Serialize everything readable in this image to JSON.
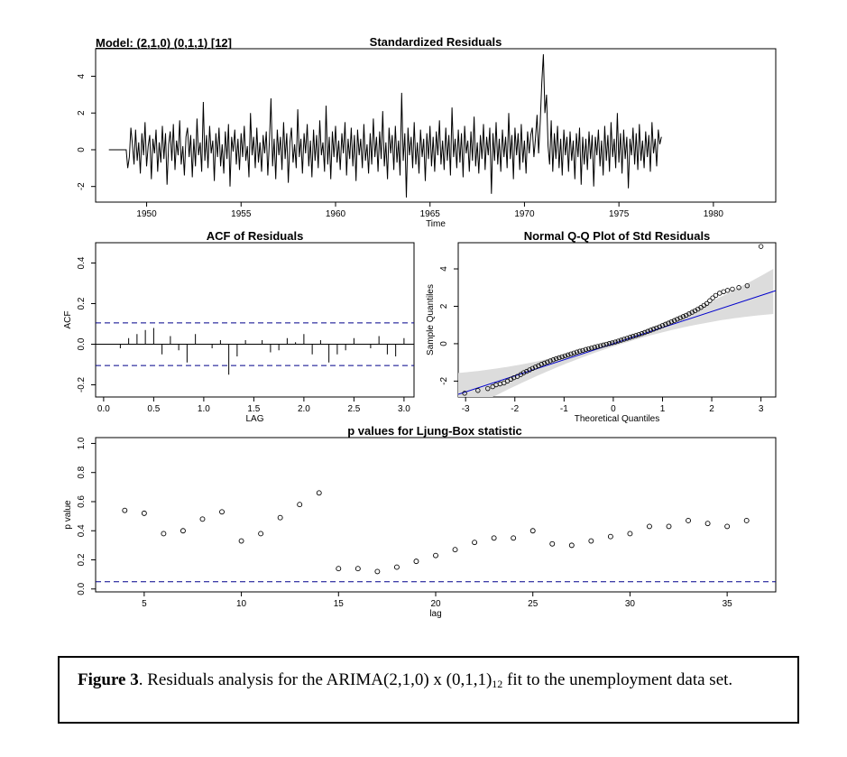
{
  "chart_data": [
    {
      "type": "line",
      "model_label": "Model: (2,1,0) (0,1,1) [12]",
      "title": "Standardized Residuals",
      "xlabel": "Time",
      "ylabel": "",
      "xlim": [
        1947.3,
        1983.3
      ],
      "ylim": [
        -2.85,
        5.5
      ],
      "xticks": [
        1950,
        1955,
        1960,
        1965,
        1970,
        1975,
        1980
      ],
      "yticks": [
        -2,
        0,
        2,
        4
      ],
      "x_start": 1948.0,
      "x_step": 0.08333,
      "y": [
        0,
        0,
        0,
        0,
        0,
        0,
        0,
        0,
        0,
        0,
        0,
        0,
        -1.0,
        -0.4,
        1.2,
        0.3,
        -0.8,
        1.1,
        -0.6,
        0.4,
        -1.3,
        0.9,
        -0.3,
        1.5,
        -0.9,
        0.2,
        0.8,
        -1.6,
        0.6,
        -0.2,
        1.1,
        -1.2,
        0.4,
        -0.7,
        1.3,
        -0.5,
        0.9,
        -1.9,
        0.3,
        1.0,
        -0.6,
        1.4,
        -1.1,
        0.5,
        -0.3,
        1.6,
        -0.8,
        0.2,
        -1.4,
        0.7,
        1.2,
        -0.4,
        0.8,
        -1.5,
        0.6,
        -0.9,
        1.7,
        -0.3,
        0.4,
        -1.2,
        2.6,
        -0.6,
        0.8,
        -1.0,
        1.3,
        -0.2,
        0.5,
        -1.7,
        0.9,
        -0.4,
        1.2,
        -0.9,
        0.3,
        -1.3,
        1.0,
        -0.5,
        1.4,
        -2.0,
        0.7,
        -0.1,
        1.1,
        -0.8,
        0.6,
        -1.1,
        0.9,
        -0.4,
        1.3,
        -0.6,
        0.2,
        -1.5,
        2.0,
        -0.3,
        0.7,
        -1.0,
        1.2,
        -0.7,
        0.4,
        -1.2,
        0.8,
        -0.2,
        1.0,
        -1.4,
        0.5,
        2.8,
        -0.9,
        0.6,
        -1.6,
        1.1,
        -0.3,
        0.7,
        -1.1,
        1.5,
        -0.5,
        0.9,
        -1.8,
        0.4,
        1.2,
        -0.7,
        0.3,
        -1.0,
        2.2,
        -0.4,
        0.6,
        -1.3,
        0.9,
        -0.2,
        1.4,
        -0.9,
        0.5,
        -1.5,
        1.1,
        -0.6,
        0.8,
        -1.0,
        1.6,
        -0.3,
        0.4,
        -1.2,
        2.4,
        -0.8,
        0.7,
        -1.6,
        1.0,
        -0.4,
        1.3,
        -0.7,
        0.5,
        -1.1,
        0.9,
        -0.2,
        1.5,
        -1.4,
        0.6,
        -0.5,
        1.2,
        -0.9,
        0.8,
        -1.7,
        1.1,
        -0.3,
        0.6,
        -1.0,
        1.4,
        -0.6,
        0.3,
        -1.3,
        0.9,
        -0.8,
        1.7,
        -0.4,
        0.7,
        -1.2,
        1.0,
        -0.5,
        2.1,
        -0.9,
        0.4,
        -1.6,
        1.2,
        -0.2,
        0.8,
        -1.1,
        1.3,
        -0.7,
        0.5,
        -1.4,
        3.1,
        -0.6,
        0.9,
        -2.6,
        1.2,
        -0.3,
        0.7,
        -1.0,
        1.5,
        -0.8,
        0.4,
        -1.3,
        1.1,
        -0.4,
        0.6,
        -1.7,
        0.9,
        -0.5,
        1.3,
        -0.9,
        0.7,
        -1.2,
        1.0,
        -0.3,
        1.6,
        -0.8,
        0.5,
        -1.1,
        1.2,
        -0.6,
        0.8,
        -1.4,
        2.3,
        -0.4,
        0.6,
        -1.0,
        1.1,
        -0.7,
        0.9,
        -1.5,
        1.3,
        -0.2,
        0.5,
        -1.2,
        1.0,
        -0.6,
        1.8,
        -0.9,
        0.4,
        -1.3,
        0.8,
        -0.5,
        1.4,
        -1.1,
        0.7,
        -0.3,
        1.2,
        -2.4,
        0.9,
        -0.6,
        1.5,
        -0.8,
        0.6,
        -1.2,
        1.1,
        -0.4,
        0.7,
        -1.0,
        2.0,
        -0.5,
        0.8,
        -1.6,
        1.2,
        -0.3,
        0.9,
        -1.1,
        1.4,
        -0.7,
        0.5,
        -1.3,
        1.0,
        -0.2,
        0.8,
        1.2,
        -0.4,
        0.6,
        1.9,
        -0.2,
        1.5,
        3.6,
        5.2,
        2.0,
        3.0,
        0.2,
        -0.8,
        1.6,
        -1.2,
        0.9,
        -0.5,
        1.3,
        -1.0,
        0.6,
        -1.4,
        1.1,
        -0.3,
        0.7,
        -1.2,
        1.0,
        -0.6,
        0.5,
        -1.6,
        0.9,
        -0.4,
        1.2,
        -1.9,
        0.7,
        -0.8,
        0.6,
        -1.1,
        1.0,
        -0.5,
        0.8,
        -2.0,
        0.7,
        -0.3,
        1.1,
        -0.9,
        0.5,
        -1.4,
        1.3,
        -0.6,
        0.8,
        -1.2,
        1.5,
        -0.4,
        0.6,
        -1.0,
        2.0,
        -0.7,
        0.9,
        -1.3,
        1.1,
        -0.5,
        0.7,
        -2.1,
        0.6,
        -0.3,
        1.2,
        -0.8,
        0.9,
        -1.1,
        1.4,
        -0.6,
        0.5,
        -1.0,
        1.0,
        -0.4,
        0.8,
        -1.2,
        1.5,
        -0.2,
        0.6,
        -0.9,
        1.1,
        0.3,
        0.7
      ]
    },
    {
      "type": "bar",
      "title": "ACF of Residuals",
      "xlabel": "LAG",
      "ylabel": "ACF",
      "xlim": [
        -0.08,
        3.1
      ],
      "ylim": [
        -0.26,
        0.5
      ],
      "xticks": [
        0.0,
        0.5,
        1.0,
        1.5,
        2.0,
        2.5,
        3.0
      ],
      "yticks": [
        -0.2,
        0.0,
        0.2,
        0.4
      ],
      "conf_bound": 0.105,
      "lags": [
        0.0833,
        0.1667,
        0.25,
        0.3333,
        0.4167,
        0.5,
        0.5833,
        0.6667,
        0.75,
        0.8333,
        0.9167,
        1.0,
        1.0833,
        1.1667,
        1.25,
        1.3333,
        1.4167,
        1.5,
        1.5833,
        1.6667,
        1.75,
        1.8333,
        1.9167,
        2.0,
        2.0833,
        2.1667,
        2.25,
        2.3333,
        2.4167,
        2.5,
        2.5833,
        2.6667,
        2.75,
        2.8333,
        2.9167,
        3.0
      ],
      "values": [
        0.0,
        -0.02,
        0.03,
        0.05,
        0.07,
        0.08,
        -0.05,
        0.04,
        -0.03,
        -0.09,
        0.05,
        0.0,
        -0.02,
        0.02,
        -0.15,
        -0.06,
        0.02,
        0.0,
        0.02,
        -0.04,
        -0.03,
        0.03,
        0.01,
        0.05,
        -0.05,
        0.02,
        -0.09,
        -0.05,
        -0.03,
        0.03,
        0.0,
        -0.02,
        0.04,
        -0.05,
        -0.06,
        0.03
      ]
    },
    {
      "type": "scatter",
      "title": "Normal Q-Q Plot of Std Residuals",
      "xlabel": "Theoretical Quantiles",
      "ylabel": "Sample Quantiles",
      "xlim": [
        -3.15,
        3.3
      ],
      "ylim": [
        -2.85,
        5.4
      ],
      "xticks": [
        -3,
        -2,
        -1,
        0,
        1,
        2,
        3
      ],
      "yticks": [
        -2,
        0,
        2,
        4
      ],
      "reference_line": {
        "intercept": 0.0,
        "slope": 0.86
      },
      "points_x": [
        -3.02,
        -2.75,
        -2.55,
        -2.45,
        -2.38,
        -2.3,
        -2.22,
        -2.15,
        -2.08,
        -2.02,
        -1.95,
        -1.88,
        -1.82,
        -1.76,
        -1.7,
        -1.64,
        -1.58,
        -1.52,
        -1.46,
        -1.4,
        -1.34,
        -1.28,
        -1.22,
        -1.16,
        -1.1,
        -1.04,
        -0.98,
        -0.92,
        -0.86,
        -0.8,
        -0.74,
        -0.68,
        -0.62,
        -0.56,
        -0.5,
        -0.44,
        -0.38,
        -0.32,
        -0.26,
        -0.2,
        -0.14,
        -0.08,
        -0.02,
        0.04,
        0.1,
        0.16,
        0.22,
        0.28,
        0.34,
        0.4,
        0.46,
        0.52,
        0.58,
        0.64,
        0.7,
        0.76,
        0.82,
        0.88,
        0.94,
        1.0,
        1.06,
        1.12,
        1.18,
        1.24,
        1.3,
        1.36,
        1.42,
        1.48,
        1.54,
        1.6,
        1.66,
        1.72,
        1.78,
        1.84,
        1.9,
        1.96,
        2.02,
        2.08,
        2.16,
        2.24,
        2.32,
        2.42,
        2.55,
        2.72,
        3.0
      ],
      "points_y": [
        -2.65,
        -2.5,
        -2.4,
        -2.3,
        -2.2,
        -2.15,
        -2.1,
        -2.0,
        -1.9,
        -1.82,
        -1.75,
        -1.65,
        -1.55,
        -1.48,
        -1.4,
        -1.32,
        -1.25,
        -1.18,
        -1.1,
        -1.04,
        -0.98,
        -0.92,
        -0.86,
        -0.8,
        -0.75,
        -0.7,
        -0.65,
        -0.6,
        -0.55,
        -0.5,
        -0.45,
        -0.4,
        -0.36,
        -0.31,
        -0.27,
        -0.23,
        -0.19,
        -0.15,
        -0.11,
        -0.07,
        -0.03,
        0.01,
        0.05,
        0.09,
        0.14,
        0.19,
        0.24,
        0.29,
        0.34,
        0.39,
        0.44,
        0.49,
        0.54,
        0.6,
        0.66,
        0.72,
        0.78,
        0.84,
        0.9,
        0.97,
        1.04,
        1.1,
        1.17,
        1.24,
        1.31,
        1.38,
        1.45,
        1.52,
        1.6,
        1.68,
        1.76,
        1.85,
        1.94,
        2.05,
        2.15,
        2.3,
        2.45,
        2.58,
        2.7,
        2.78,
        2.85,
        2.92,
        3.0,
        3.1,
        5.2
      ]
    },
    {
      "type": "scatter",
      "title": "p values for Ljung-Box statistic",
      "xlabel": "lag",
      "ylabel": "p value",
      "xlim": [
        2.5,
        37.5
      ],
      "ylim": [
        -0.02,
        1.04
      ],
      "xticks": [
        5,
        10,
        15,
        20,
        25,
        30,
        35
      ],
      "yticks": [
        0.0,
        0.2,
        0.4,
        0.6,
        0.8,
        1.0
      ],
      "significance_line": 0.05,
      "lag": [
        4,
        5,
        6,
        7,
        8,
        9,
        10,
        11,
        12,
        13,
        14,
        15,
        16,
        17,
        18,
        19,
        20,
        21,
        22,
        23,
        24,
        25,
        26,
        27,
        28,
        29,
        30,
        31,
        32,
        33,
        34,
        35,
        36
      ],
      "values": [
        0.54,
        0.52,
        0.38,
        0.4,
        0.48,
        0.53,
        0.33,
        0.38,
        0.49,
        0.58,
        0.66,
        0.14,
        0.14,
        0.12,
        0.15,
        0.19,
        0.23,
        0.27,
        0.32,
        0.35,
        0.35,
        0.4,
        0.31,
        0.3,
        0.33,
        0.36,
        0.38,
        0.43,
        0.43,
        0.47,
        0.45,
        0.43,
        0.47
      ]
    }
  ],
  "caption": {
    "label": "Figure 3",
    "text_before_sub": ". Residuals analysis for the ARIMA(2,1,0) x (0,1,1)",
    "subscript": "12",
    "text_after_sub": " fit to the unemployment data set."
  },
  "colors": {
    "axes": "#000000",
    "reference_line": "#0000cc",
    "confidence_band": "#dcdcdc",
    "dashed_line": "#00008b"
  }
}
